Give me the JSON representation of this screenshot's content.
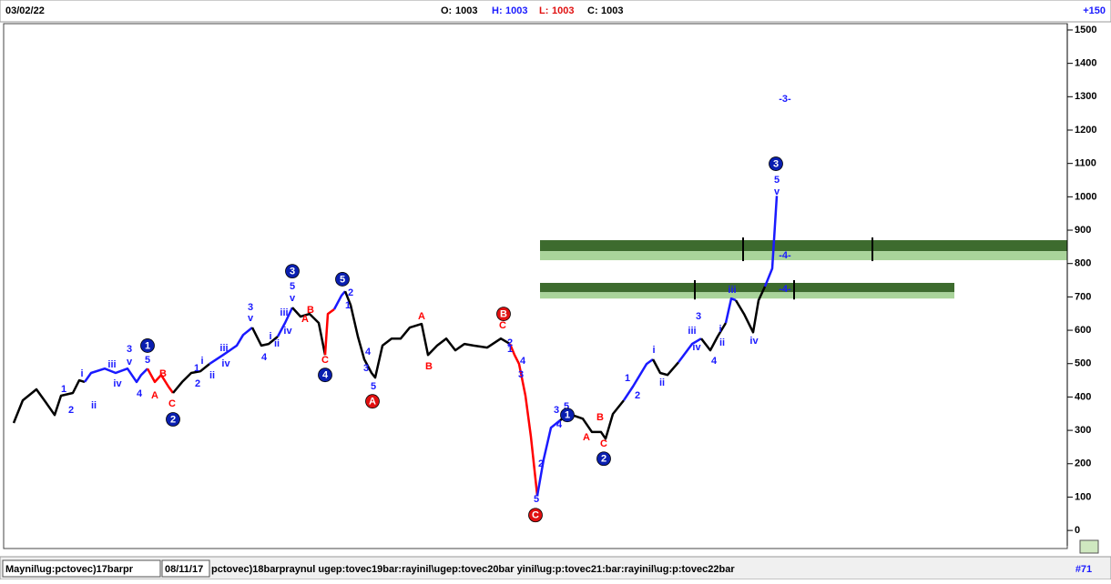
{
  "chart_data": {
    "type": "line",
    "header": {
      "date": "03/02/22",
      "open_label": "O:",
      "open": 1003,
      "high_label": "H:",
      "high": 1003,
      "low_label": "L:",
      "low": 1003,
      "close_label": "C:",
      "close": 1003,
      "zoom": "+150"
    },
    "footer": {
      "left": "Maynil\\ug:pctovec)17barpr",
      "date": "08/11/17",
      "right": "pctovec)18barpraynul ugep:tovec19bar:rayinil\\ugep:tovec20bar yinil\\ug:p:tovec21:bar:rayinil\\ug:p:tovec22bar",
      "page": "#71"
    },
    "xlim": [
      0,
      1167
    ],
    "ylim": [
      -46,
      1519
    ],
    "yticks": [
      0,
      100,
      200,
      300,
      400,
      500,
      600,
      700,
      800,
      900,
      1000,
      1100,
      1200,
      1300,
      1400,
      1500
    ],
    "zones": [
      {
        "low": 810,
        "mid": 837,
        "high": 870,
        "dark": "#3d6b2e",
        "light": "#a9d49a"
      },
      {
        "low": 695,
        "mid": 714,
        "high": 742,
        "dark": "#3d6b2e",
        "light": "#a9d49a"
      }
    ],
    "series": [
      {
        "color": "#000000",
        "x": [
          10,
          20,
          35,
          45,
          55,
          62,
          75,
          82,
          88
        ],
        "values": [
          322,
          390,
          423,
          385,
          346,
          404,
          412,
          450,
          445
        ]
      },
      {
        "color": "#1a1aff",
        "x": [
          88,
          95,
          110,
          122,
          135,
          145,
          150,
          157
        ],
        "values": [
          445,
          472,
          485,
          472,
          485,
          445,
          466,
          485
        ]
      },
      {
        "color": "#ff0000",
        "x": [
          157,
          165,
          172,
          180,
          185
        ],
        "values": [
          485,
          445,
          466,
          431,
          412
        ]
      },
      {
        "color": "#000000",
        "x": [
          185,
          195,
          205,
          215,
          225
        ],
        "values": [
          412,
          445,
          472,
          477,
          499
        ]
      },
      {
        "color": "#1a1aff",
        "x": [
          225,
          240,
          255,
          262,
          272
        ],
        "values": [
          499,
          526,
          554,
          586,
          608
        ]
      },
      {
        "color": "#000000",
        "x": [
          272,
          282,
          290,
          300
        ],
        "values": [
          608,
          554,
          559,
          581
        ]
      },
      {
        "color": "#1a1aff",
        "x": [
          300,
          308,
          316
        ],
        "values": [
          581,
          622,
          668
        ]
      },
      {
        "color": "#000000",
        "x": [
          316,
          325,
          335,
          345,
          352
        ],
        "values": [
          668,
          641,
          649,
          622,
          526
        ]
      },
      {
        "color": "#ff0000",
        "x": [
          352,
          355,
          362
        ],
        "values": [
          526,
          649,
          663
        ]
      },
      {
        "color": "#1a1aff",
        "x": [
          362,
          370,
          374
        ],
        "values": [
          663,
          704,
          717
        ]
      },
      {
        "color": "#000000",
        "x": [
          374,
          380,
          388,
          395,
          403,
          407,
          415,
          425,
          435,
          445,
          458,
          465,
          475,
          485,
          495,
          505,
          515,
          530,
          545,
          555
        ],
        "values": [
          717,
          676,
          581,
          513,
          472,
          458,
          554,
          575,
          575,
          608,
          619,
          526,
          554,
          575,
          540,
          559,
          554,
          548,
          575,
          559
        ]
      },
      {
        "color": "#ff0000",
        "x": [
          555,
          560,
          565,
          572,
          578,
          585
        ],
        "values": [
          559,
          526,
          499,
          404,
          281,
          104
        ]
      },
      {
        "color": "#1a1aff",
        "x": [
          585,
          592,
          600,
          610
        ],
        "values": [
          104,
          213,
          308,
          330
        ]
      },
      {
        "color": "#000000",
        "x": [
          610,
          620,
          635,
          645,
          655,
          660,
          668,
          680
        ],
        "values": [
          330,
          349,
          335,
          295,
          295,
          275,
          349,
          390
        ]
      },
      {
        "color": "#1a1aff",
        "x": [
          680,
          690,
          705,
          712
        ],
        "values": [
          390,
          431,
          499,
          513
        ]
      },
      {
        "color": "#000000",
        "x": [
          712,
          720,
          728,
          740
        ],
        "values": [
          513,
          472,
          466,
          504
        ]
      },
      {
        "color": "#1a1aff",
        "x": [
          740,
          755,
          765
        ],
        "values": [
          504,
          559,
          575
        ]
      },
      {
        "color": "#000000",
        "x": [
          765,
          775,
          783,
          792
        ],
        "values": [
          575,
          540,
          581,
          622
        ]
      },
      {
        "color": "#1a1aff",
        "x": [
          792,
          798,
          803
        ],
        "values": [
          622,
          695,
          690
        ]
      },
      {
        "color": "#000000",
        "x": [
          803,
          812,
          822,
          828,
          835
        ],
        "values": [
          690,
          649,
          594,
          690,
          731
        ]
      },
      {
        "color": "#1a1aff",
        "x": [
          835,
          843,
          848
        ],
        "values": [
          731,
          785,
          1003
        ]
      }
    ],
    "annotations": [
      {
        "text": "1",
        "x": 65,
        "y": 423,
        "color": "#1a1aff"
      },
      {
        "text": "2",
        "x": 73,
        "y": 360,
        "color": "#1a1aff"
      },
      {
        "text": "i",
        "x": 85,
        "y": 469,
        "color": "#1a1aff"
      },
      {
        "text": "ii",
        "x": 98,
        "y": 374,
        "color": "#1a1aff"
      },
      {
        "text": "iii",
        "x": 118,
        "y": 496,
        "color": "#1a1aff"
      },
      {
        "text": "iv",
        "x": 124,
        "y": 439,
        "color": "#1a1aff"
      },
      {
        "text": "3",
        "x": 137,
        "y": 543,
        "color": "#1a1aff"
      },
      {
        "text": "v",
        "x": 137,
        "y": 505,
        "color": "#1a1aff"
      },
      {
        "text": "5",
        "x": 157,
        "y": 510,
        "color": "#1a1aff"
      },
      {
        "text": "4",
        "x": 148,
        "y": 409,
        "color": "#1a1aff"
      },
      {
        "text": "1",
        "x": 211,
        "y": 485,
        "color": "#1a1aff"
      },
      {
        "text": "2",
        "x": 212,
        "y": 439,
        "color": "#1a1aff"
      },
      {
        "text": "i",
        "x": 217,
        "y": 507,
        "color": "#1a1aff"
      },
      {
        "text": "ii",
        "x": 228,
        "y": 464,
        "color": "#1a1aff"
      },
      {
        "text": "iii",
        "x": 241,
        "y": 545,
        "color": "#1a1aff"
      },
      {
        "text": "iv",
        "x": 243,
        "y": 499,
        "color": "#1a1aff"
      },
      {
        "text": "3",
        "x": 270,
        "y": 668,
        "color": "#1a1aff"
      },
      {
        "text": "v",
        "x": 270,
        "y": 635,
        "color": "#1a1aff"
      },
      {
        "text": "4",
        "x": 285,
        "y": 518,
        "color": "#1a1aff"
      },
      {
        "text": "i",
        "x": 292,
        "y": 581,
        "color": "#1a1aff"
      },
      {
        "text": "ii",
        "x": 299,
        "y": 559,
        "color": "#1a1aff"
      },
      {
        "text": "iii",
        "x": 307,
        "y": 652,
        "color": "#1a1aff"
      },
      {
        "text": "iv",
        "x": 311,
        "y": 597,
        "color": "#1a1aff"
      },
      {
        "text": "5",
        "x": 316,
        "y": 731,
        "color": "#1a1aff"
      },
      {
        "text": "v",
        "x": 316,
        "y": 695,
        "color": "#1a1aff"
      },
      {
        "text": "2",
        "x": 380,
        "y": 712,
        "color": "#1a1aff"
      },
      {
        "text": "1",
        "x": 377,
        "y": 674,
        "color": "#1a1aff"
      },
      {
        "text": "4",
        "x": 399,
        "y": 534,
        "color": "#1a1aff"
      },
      {
        "text": "3",
        "x": 397,
        "y": 485,
        "color": "#1a1aff"
      },
      {
        "text": "5",
        "x": 405,
        "y": 431,
        "color": "#1a1aff"
      },
      {
        "text": "2",
        "x": 555,
        "y": 562,
        "color": "#1a1aff"
      },
      {
        "text": "1",
        "x": 555,
        "y": 543,
        "color": "#1a1aff"
      },
      {
        "text": "4",
        "x": 569,
        "y": 507,
        "color": "#1a1aff"
      },
      {
        "text": "3",
        "x": 567,
        "y": 466,
        "color": "#1a1aff"
      },
      {
        "text": "2",
        "x": 589,
        "y": 199,
        "color": "#1a1aff"
      },
      {
        "text": "5",
        "x": 584,
        "y": 93,
        "color": "#1a1aff"
      },
      {
        "text": "3",
        "x": 606,
        "y": 360,
        "color": "#1a1aff"
      },
      {
        "text": "4",
        "x": 609,
        "y": 316,
        "color": "#1a1aff"
      },
      {
        "text": "5",
        "x": 617,
        "y": 371,
        "color": "#1a1aff"
      },
      {
        "text": "1",
        "x": 684,
        "y": 455,
        "color": "#1a1aff"
      },
      {
        "text": "2",
        "x": 695,
        "y": 404,
        "color": "#1a1aff"
      },
      {
        "text": "i",
        "x": 713,
        "y": 540,
        "color": "#1a1aff"
      },
      {
        "text": "ii",
        "x": 722,
        "y": 442,
        "color": "#1a1aff"
      },
      {
        "text": "3",
        "x": 762,
        "y": 641,
        "color": "#1a1aff"
      },
      {
        "text": "iii",
        "x": 755,
        "y": 597,
        "color": "#1a1aff"
      },
      {
        "text": "iv",
        "x": 760,
        "y": 548,
        "color": "#1a1aff"
      },
      {
        "text": "4",
        "x": 779,
        "y": 507,
        "color": "#1a1aff"
      },
      {
        "text": "i",
        "x": 786,
        "y": 603,
        "color": "#1a1aff"
      },
      {
        "text": "ii",
        "x": 788,
        "y": 562,
        "color": "#1a1aff"
      },
      {
        "text": "iii",
        "x": 799,
        "y": 720,
        "color": "#1a1aff"
      },
      {
        "text": "iv",
        "x": 823,
        "y": 567,
        "color": "#1a1aff"
      },
      {
        "text": "5",
        "x": 848,
        "y": 1050,
        "color": "#1a1aff"
      },
      {
        "text": "v",
        "x": 848,
        "y": 1014,
        "color": "#1a1aff"
      },
      {
        "text": "-3-",
        "x": 857,
        "y": 1293,
        "color": "#1a1aff"
      },
      {
        "text": "-4-",
        "x": 857,
        "y": 824,
        "color": "#1a1aff"
      },
      {
        "text": "-4-",
        "x": 857,
        "y": 723,
        "color": "#1a1aff"
      },
      {
        "text": "A",
        "x": 165,
        "y": 404,
        "color": "#ff0000"
      },
      {
        "text": "B",
        "x": 174,
        "y": 469,
        "color": "#ff0000"
      },
      {
        "text": "C",
        "x": 184,
        "y": 379,
        "color": "#ff0000"
      },
      {
        "text": "A",
        "x": 330,
        "y": 633,
        "color": "#ff0000"
      },
      {
        "text": "B",
        "x": 336,
        "y": 660,
        "color": "#ff0000"
      },
      {
        "text": "C",
        "x": 352,
        "y": 510,
        "color": "#ff0000"
      },
      {
        "text": "B",
        "x": 466,
        "y": 491,
        "color": "#ff0000"
      },
      {
        "text": "A",
        "x": 458,
        "y": 641,
        "color": "#ff0000"
      },
      {
        "text": "C",
        "x": 547,
        "y": 614,
        "color": "#ff0000"
      },
      {
        "text": "A",
        "x": 639,
        "y": 278,
        "color": "#ff0000"
      },
      {
        "text": "B",
        "x": 654,
        "y": 338,
        "color": "#ff0000"
      },
      {
        "text": "C",
        "x": 658,
        "y": 259,
        "color": "#ff0000"
      },
      {
        "text": "1",
        "x": 157,
        "y": 554,
        "color": "#0a1fb0",
        "style": "circle"
      },
      {
        "text": "2",
        "x": 185,
        "y": 333,
        "color": "#0a1fb0",
        "style": "circle"
      },
      {
        "text": "3",
        "x": 316,
        "y": 777,
        "color": "#0a1fb0",
        "style": "circle"
      },
      {
        "text": "4",
        "x": 352,
        "y": 466,
        "color": "#0a1fb0",
        "style": "circle"
      },
      {
        "text": "5",
        "x": 371,
        "y": 753,
        "color": "#0a1fb0",
        "style": "circle"
      },
      {
        "text": "1",
        "x": 618,
        "y": 346,
        "color": "#0a1fb0",
        "style": "circle"
      },
      {
        "text": "2",
        "x": 658,
        "y": 215,
        "color": "#0a1fb0",
        "style": "circle"
      },
      {
        "text": "3",
        "x": 847,
        "y": 1099,
        "color": "#0a1fb0",
        "style": "circle"
      },
      {
        "text": "A",
        "x": 404,
        "y": 387,
        "color": "#e01010",
        "style": "circle"
      },
      {
        "text": "B",
        "x": 548,
        "y": 649,
        "color": "#e01010",
        "style": "circle"
      },
      {
        "text": "C",
        "x": 583,
        "y": 46,
        "color": "#e01010",
        "style": "circle"
      }
    ]
  }
}
